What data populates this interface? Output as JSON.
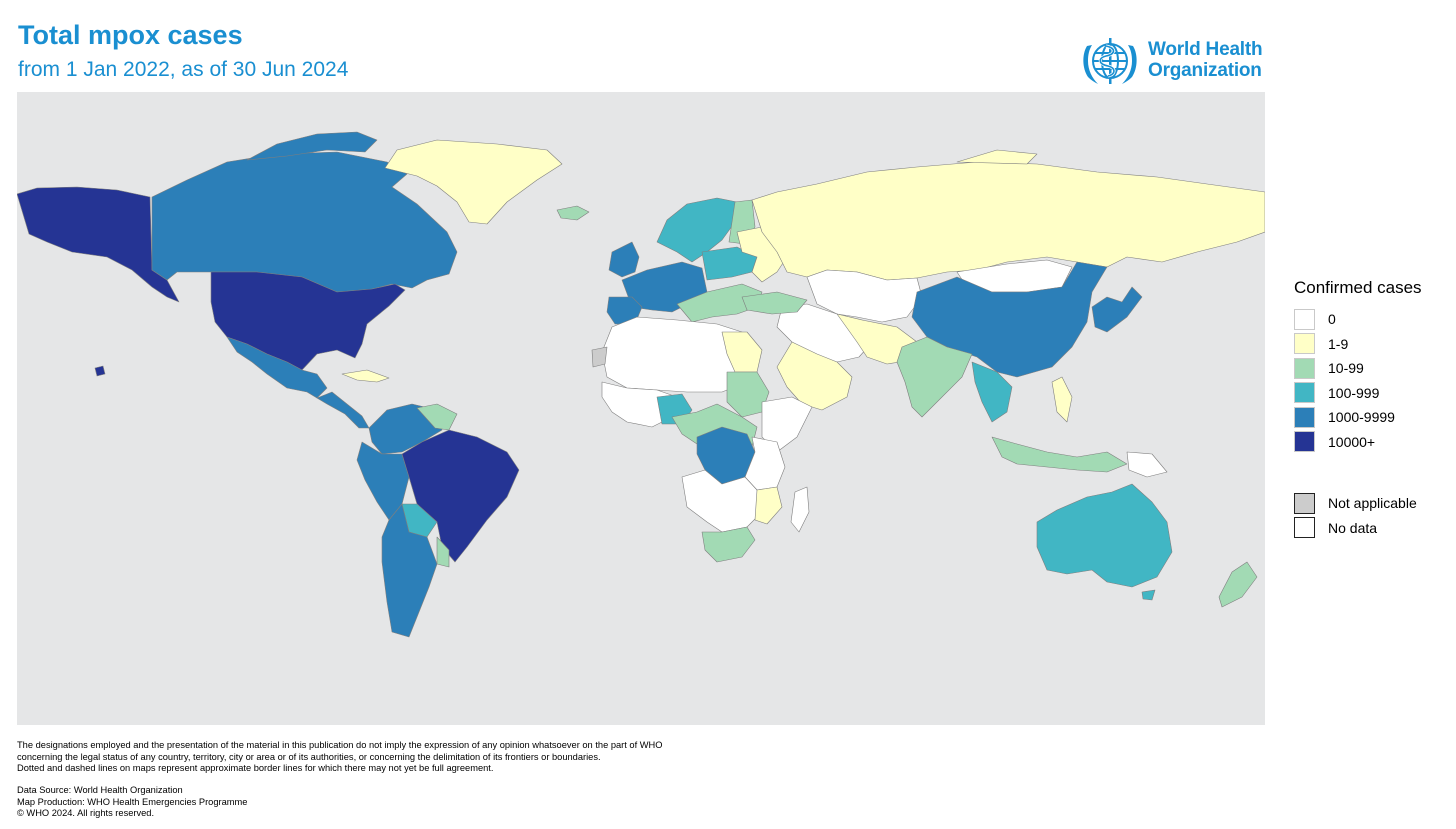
{
  "header": {
    "title": "Total mpox cases",
    "subtitle": "from 1 Jan 2022, as of 30 Jun 2024"
  },
  "logo": {
    "line1": "World Health",
    "line2": "Organization",
    "color": "#1a8fd1"
  },
  "legend": {
    "title": "Confirmed cases",
    "items": [
      {
        "label": "0",
        "color": "#ffffff"
      },
      {
        "label": "1-9",
        "color": "#ffffc7"
      },
      {
        "label": "10-99",
        "color": "#a2dab4"
      },
      {
        "label": "100-999",
        "color": "#41b6c4"
      },
      {
        "label": "1000-9999",
        "color": "#2c7fb8"
      },
      {
        "label": "10000+",
        "color": "#253494"
      }
    ],
    "extra": [
      {
        "label": "Not applicable",
        "color": "#cccccc"
      },
      {
        "label": "No data",
        "color": "#ffffff"
      }
    ]
  },
  "map_colors": {
    "ocean": "#e5e6e7",
    "border": "#7f7f7f"
  },
  "footer": {
    "disclaimer": [
      "The designations employed and the presentation of the material in this publication do not imply the expression of any opinion whatsoever on the part of WHO",
      "concerning the legal status of any country, territory, city or area or of its authorities, or concerning the delimitation of its frontiers or boundaries.",
      "Dotted and dashed lines on maps represent approximate border lines for which there may not yet be full agreement."
    ],
    "credits": [
      "Data Source: World Health Organization",
      "Map Production: WHO Health Emergencies Programme",
      "© WHO 2024. All rights reserved."
    ]
  }
}
